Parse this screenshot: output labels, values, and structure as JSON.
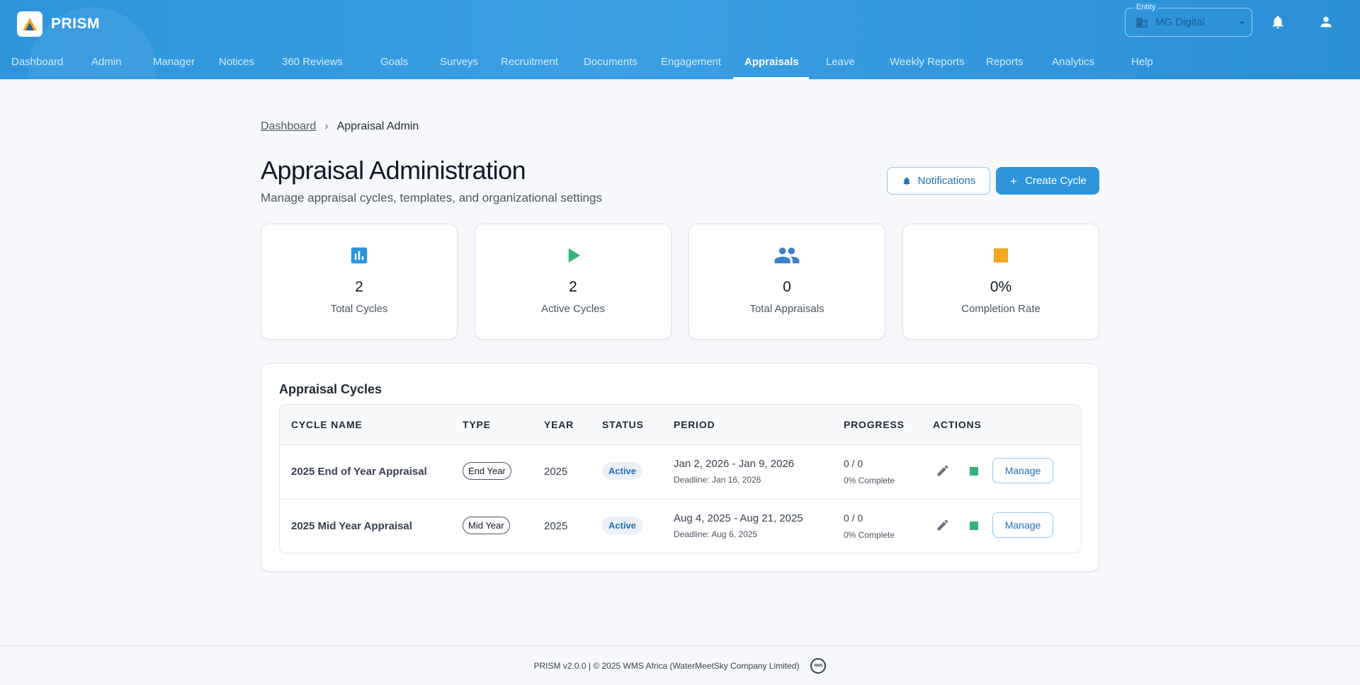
{
  "app": {
    "name": "PRISM",
    "brand_color": "#2e95dd"
  },
  "header": {
    "entity_label": "Entity",
    "entity_value": "MG Digital",
    "icons": [
      "building-icon",
      "chevron-down-icon",
      "bell-icon",
      "user-icon"
    ]
  },
  "nav": {
    "items": [
      {
        "label": "Dashboard"
      },
      {
        "label": "Admin"
      },
      {
        "label": "Manager"
      },
      {
        "label": "Notices"
      },
      {
        "label": "360 Reviews"
      },
      {
        "label": "Goals"
      },
      {
        "label": "Surveys"
      },
      {
        "label": "Recruitment"
      },
      {
        "label": "Documents"
      },
      {
        "label": "Engagement"
      },
      {
        "label": "Appraisals",
        "active": true
      },
      {
        "label": "Leave"
      },
      {
        "label": "Weekly Reports"
      },
      {
        "label": "Reports"
      },
      {
        "label": "Analytics"
      },
      {
        "label": "Help"
      }
    ]
  },
  "breadcrumb": {
    "link": "Dashboard",
    "separator": "›",
    "current": "Appraisal Admin"
  },
  "page": {
    "title": "Appraisal Administration",
    "subtitle": "Manage appraisal cycles, templates, and organizational settings",
    "notifications_button": "Notifications",
    "create_button": "Create Cycle"
  },
  "stats": [
    {
      "value": "2",
      "label": "Total Cycles",
      "icon": "bar-chart-icon",
      "color": "#2e95dd"
    },
    {
      "value": "2",
      "label": "Active Cycles",
      "icon": "play-icon",
      "color": "#33b27a"
    },
    {
      "value": "0",
      "label": "Total Appraisals",
      "icon": "people-icon",
      "color": "#3b82c6"
    },
    {
      "value": "0%",
      "label": "Completion Rate",
      "icon": "square-icon",
      "color": "#f5a623"
    }
  ],
  "cycles": {
    "title": "Appraisal Cycles",
    "columns": [
      "CYCLE NAME",
      "TYPE",
      "YEAR",
      "STATUS",
      "PERIOD",
      "PROGRESS",
      "ACTIONS"
    ],
    "rows": [
      {
        "name": "2025 End of Year Appraisal",
        "type": "End Year",
        "year": "2025",
        "status": "Active",
        "period": "Jan 2, 2026 - Jan 9, 2026",
        "deadline": "Deadline: Jan 16, 2026",
        "progress": "0 / 0",
        "progress_sub": "0% Complete",
        "manage_label": "Manage"
      },
      {
        "name": "2025 Mid Year Appraisal",
        "type": "Mid Year",
        "year": "2025",
        "status": "Active",
        "period": "Aug 4, 2025 - Aug 21, 2025",
        "deadline": "Deadline: Aug 6, 2025",
        "progress": "0 / 0",
        "progress_sub": "0% Complete",
        "manage_label": "Manage"
      }
    ]
  },
  "footer": {
    "text": "PRISM v2.0.0 | © 2025 WMS Africa (WaterMeetSky Company Limited)",
    "logo_text": "WMS"
  }
}
